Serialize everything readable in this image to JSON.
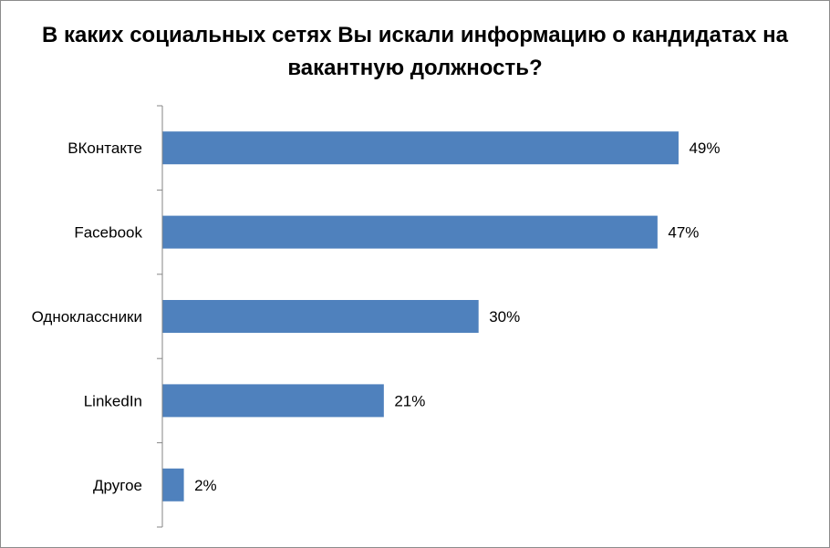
{
  "chart_data": {
    "type": "bar",
    "orientation": "horizontal",
    "title": "В каких социальных сетях Вы искали информацию о кандидатах на вакантную должность?",
    "categories": [
      "ВКонтакте",
      "Facebook",
      "Одноклассники",
      "LinkedIn",
      "Другое"
    ],
    "values": [
      49,
      47,
      30,
      21,
      2
    ],
    "value_labels": [
      "49%",
      "47%",
      "30%",
      "21%",
      "2%"
    ],
    "xlim": [
      0,
      50
    ],
    "grid": false,
    "legend": "none",
    "bar_color": "#4f81bd"
  }
}
